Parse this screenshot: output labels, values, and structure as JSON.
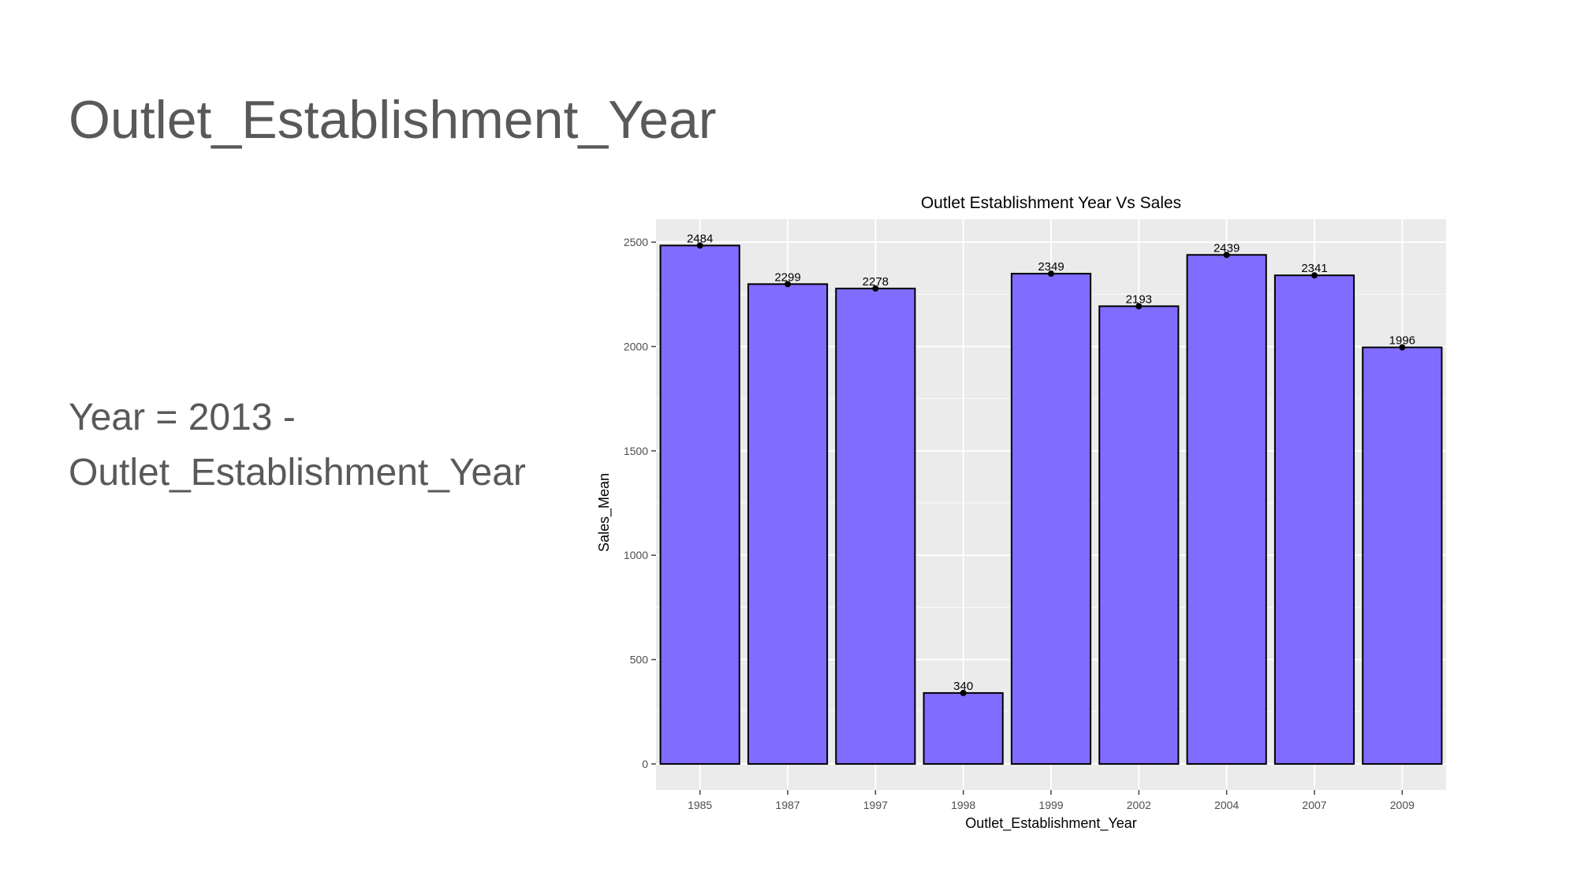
{
  "slide": {
    "title": "Outlet_Establishment_Year",
    "formula_line1": "Year = 2013 -",
    "formula_line2": "Outlet_Establishment_Year"
  },
  "colors": {
    "bar_fill": "#806cff",
    "bar_stroke": "#000000",
    "panel_bg": "#ebebeb",
    "grid": "#ffffff",
    "text": "#595959"
  },
  "chart_data": {
    "type": "bar",
    "title": "Outlet Establishment Year Vs Sales",
    "xlabel": "Outlet_Establishment_Year",
    "ylabel": "Sales_Mean",
    "categories": [
      "1985",
      "1987",
      "1997",
      "1998",
      "1999",
      "2002",
      "2004",
      "2007",
      "2009"
    ],
    "values": [
      2484,
      2299,
      2278,
      340,
      2349,
      2193,
      2439,
      2341,
      1996
    ],
    "data_labels": [
      "2484",
      "2299",
      "2278",
      "340",
      "2349",
      "2193",
      "2439",
      "2341",
      "1996"
    ],
    "yticks": [
      0,
      500,
      1000,
      1500,
      2000,
      2500
    ],
    "ylim": [
      -125,
      2610
    ],
    "grid": true,
    "legend": "none"
  }
}
